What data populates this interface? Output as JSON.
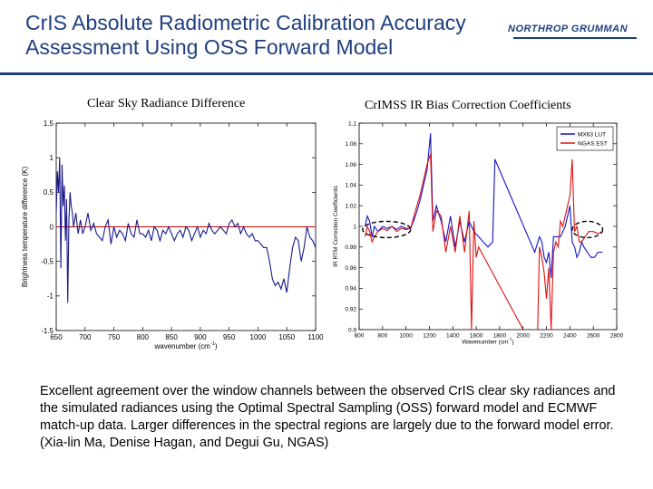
{
  "header": {
    "title_line1": "CrIS Absolute Radiometric Calibration Accuracy",
    "title_line2": "Assessment Using OSS Forward Model",
    "logo_text": "NORTHROP GRUMMAN",
    "accent_color": "#1f3f7f"
  },
  "caption": "Excellent agreement over the window channels between the observed CrIS clear sky radiances and the simulated radiances using the Optimal Spectral Sampling (OSS) forward model and ECMWF match-up data. Larger differences in the spectral regions are largely due to the forward model error. (Xia-lin Ma, Denise Hagan, and Degui Gu, NGAS)",
  "chart_data": [
    {
      "type": "line",
      "title": "Clear Sky Radiance Difference",
      "xlabel": "wavenumber (cm",
      "xlabel_sup": "-1",
      "xlabel_end": ")",
      "ylabel": "Brightness temperature difference (K)",
      "xlim": [
        650,
        1100
      ],
      "ylim": [
        -1.5,
        1.5
      ],
      "xticks": [
        650,
        700,
        750,
        800,
        850,
        900,
        950,
        1000,
        1050,
        1100
      ],
      "yticks": [
        -1.5,
        -1,
        -0.5,
        0,
        0.5,
        1,
        1.5
      ],
      "reference_line": 0,
      "series": [
        {
          "color": "#1a1a8c",
          "x": [
            650,
            652,
            654,
            656,
            658,
            660,
            662,
            664,
            666,
            668,
            670,
            672,
            674,
            676,
            678,
            680,
            684,
            688,
            692,
            696,
            700,
            705,
            710,
            715,
            720,
            725,
            730,
            735,
            740,
            745,
            750,
            755,
            760,
            765,
            770,
            775,
            780,
            785,
            790,
            795,
            800,
            805,
            810,
            815,
            820,
            825,
            830,
            835,
            840,
            845,
            850,
            855,
            860,
            865,
            870,
            875,
            880,
            885,
            890,
            895,
            900,
            905,
            910,
            915,
            920,
            925,
            930,
            935,
            940,
            945,
            950,
            955,
            960,
            965,
            970,
            975,
            980,
            985,
            990,
            995,
            1000,
            1005,
            1010,
            1015,
            1020,
            1025,
            1030,
            1035,
            1040,
            1045,
            1050,
            1055,
            1060,
            1065,
            1070,
            1075,
            1080,
            1085,
            1090,
            1095,
            1100
          ],
          "values": [
            0.2,
            0.8,
            0.5,
            1.0,
            -0.6,
            0.9,
            0.3,
            0.6,
            -0.2,
            0.4,
            -1.1,
            0.1,
            0.5,
            0.3,
            0.2,
            0.0,
            0.2,
            -0.1,
            0.1,
            -0.1,
            0.0,
            0.2,
            -0.05,
            0.05,
            -0.1,
            -0.15,
            -0.2,
            0.0,
            0.1,
            -0.25,
            0.0,
            -0.15,
            -0.05,
            -0.1,
            -0.2,
            0.05,
            -0.1,
            -0.15,
            0.1,
            -0.1,
            -0.1,
            -0.15,
            -0.05,
            -0.2,
            0.0,
            -0.05,
            -0.2,
            -0.05,
            -0.1,
            0.0,
            -0.1,
            -0.2,
            -0.1,
            -0.05,
            -0.15,
            0.0,
            -0.05,
            -0.2,
            -0.1,
            0.0,
            -0.15,
            -0.05,
            -0.1,
            0.05,
            -0.05,
            -0.1,
            -0.05,
            0.0,
            -0.05,
            -0.1,
            0.05,
            0.1,
            0.0,
            0.05,
            -0.1,
            0.0,
            -0.1,
            -0.15,
            -0.1,
            -0.2,
            -0.2,
            -0.25,
            -0.3,
            -0.3,
            -0.5,
            -0.75,
            -0.85,
            -0.8,
            -0.9,
            -0.75,
            -0.95,
            -0.6,
            -0.3,
            -0.15,
            -0.2,
            -0.5,
            -0.3,
            0.0,
            -0.15,
            -0.2,
            -0.3
          ]
        }
      ]
    },
    {
      "type": "line",
      "title": "CrIMSS IR Bias Correction Coefficients",
      "xlabel": "Wavenumber (cm",
      "xlabel_sup": "-1",
      "xlabel_end": ")",
      "ylabel": "IR RTM Correction Coefficients",
      "xlim": [
        600,
        2800
      ],
      "ylim": [
        0.9,
        1.1
      ],
      "xticks": [
        600,
        800,
        1000,
        1200,
        1400,
        1600,
        1800,
        2000,
        2200,
        2400,
        2600,
        2800
      ],
      "yticks": [
        0.9,
        0.92,
        0.94,
        0.96,
        0.98,
        1,
        1.02,
        1.04,
        1.06,
        1.08,
        1.1
      ],
      "legend_position": "top-right",
      "highlight_regions": [
        [
          630,
          1040
        ],
        [
          2420,
          2680
        ]
      ],
      "series": [
        {
          "name": "MX63 LUT",
          "color": "#1414c8",
          "x": [
            650,
            670,
            690,
            710,
            730,
            760,
            800,
            840,
            880,
            920,
            960,
            1000,
            1040,
            1080,
            1120,
            1150,
            1180,
            1210,
            1230,
            1260,
            1300,
            1340,
            1380,
            1420,
            1460,
            1500,
            1540,
            1580,
            1620,
            1660,
            1700,
            1740,
            1760,
            2100,
            2140,
            2160,
            2180,
            2200,
            2220,
            2240,
            2260,
            2280,
            2300,
            2320,
            2340,
            2360,
            2380,
            2400,
            2420,
            2440,
            2460,
            2480,
            2500,
            2520,
            2550,
            2580,
            2610,
            2640,
            2680
          ],
          "values": [
            1.0,
            1.01,
            1.005,
            0.99,
            1.0,
            0.995,
            1.0,
            0.998,
            1.0,
            0.997,
            1.0,
            0.998,
            0.998,
            1.01,
            1.025,
            1.04,
            1.055,
            1.09,
            1.005,
            1.02,
            1.005,
            0.985,
            1.01,
            0.98,
            1.005,
            0.985,
            1.005,
            0.995,
            0.99,
            0.985,
            0.98,
            0.985,
            1.065,
            0.975,
            0.99,
            0.985,
            0.97,
            0.965,
            0.975,
            0.95,
            0.99,
            0.99,
            0.99,
            0.99,
            0.995,
            1.0,
            1.01,
            1.02,
            0.985,
            0.98,
            0.97,
            0.975,
            0.985,
            0.98,
            0.975,
            0.97,
            0.97,
            0.975,
            0.975
          ]
        },
        {
          "name": "NGAS EST",
          "color": "#e01010",
          "x": [
            650,
            670,
            690,
            710,
            730,
            760,
            800,
            840,
            880,
            920,
            960,
            1000,
            1040,
            1080,
            1120,
            1150,
            1180,
            1210,
            1230,
            1260,
            1300,
            1340,
            1380,
            1420,
            1460,
            1500,
            1540,
            1560,
            1580,
            1600,
            1620,
            2120,
            2140,
            2160,
            2180,
            2200,
            2220,
            2240,
            2260,
            2280,
            2300,
            2320,
            2340,
            2360,
            2380,
            2400,
            2420,
            2440,
            2460,
            2480,
            2500,
            2530,
            2560,
            2600,
            2640,
            2680
          ],
          "values": [
            0.99,
            1.0,
            0.995,
            0.985,
            0.99,
            0.995,
            0.998,
            0.996,
            1.0,
            0.995,
            0.998,
            0.997,
            0.998,
            1.015,
            1.03,
            1.045,
            1.06,
            1.07,
            0.995,
            1.015,
            1.01,
            0.975,
            1.0,
            0.975,
            1.01,
            0.975,
            1.015,
            0.9,
            1.005,
            0.97,
            0.98,
            0.875,
            0.98,
            0.97,
            0.955,
            0.93,
            0.96,
            0.9,
            0.975,
            0.985,
            0.98,
            1.005,
            1.0,
            1.01,
            1.02,
            1.03,
            1.065,
            0.995,
            1.0,
            0.985,
            0.985,
            0.99,
            0.995,
            0.995,
            0.993,
            0.995
          ]
        }
      ]
    }
  ]
}
